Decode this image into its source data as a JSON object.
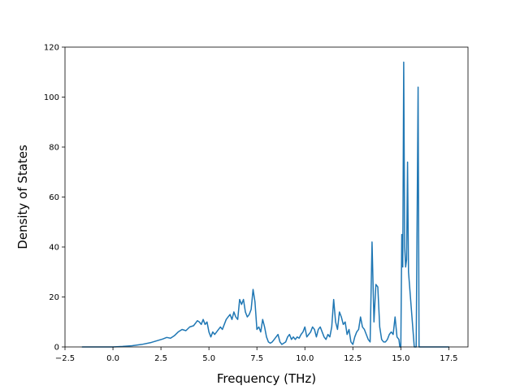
{
  "chart_data": {
    "type": "line",
    "title": "",
    "xlabel": "Frequency (THz)",
    "ylabel": "Density of States",
    "xlim": [
      -2.5,
      18.5
    ],
    "ylim": [
      0,
      120
    ],
    "xticks": [
      -2.5,
      0.0,
      2.5,
      5.0,
      7.5,
      10.0,
      12.5,
      15.0,
      17.5
    ],
    "xtick_labels": [
      "−2.5",
      "0.0",
      "2.5",
      "5.0",
      "7.5",
      "10.0",
      "12.5",
      "15.0",
      "17.5"
    ],
    "yticks": [
      0,
      20,
      40,
      60,
      80,
      100,
      120
    ],
    "ytick_labels": [
      "0",
      "20",
      "40",
      "60",
      "80",
      "100",
      "120"
    ],
    "grid": false,
    "line_color": "#1f77b4",
    "series": [
      {
        "name": "",
        "x": [
          -1.6,
          -1.0,
          -0.5,
          0.0,
          0.5,
          1.0,
          1.5,
          2.0,
          2.3,
          2.6,
          2.8,
          3.0,
          3.2,
          3.4,
          3.6,
          3.8,
          4.0,
          4.2,
          4.4,
          4.5,
          4.6,
          4.7,
          4.8,
          4.9,
          5.0,
          5.1,
          5.2,
          5.3,
          5.4,
          5.5,
          5.6,
          5.7,
          5.8,
          5.9,
          6.0,
          6.1,
          6.2,
          6.3,
          6.4,
          6.5,
          6.6,
          6.7,
          6.8,
          6.9,
          7.0,
          7.1,
          7.2,
          7.3,
          7.4,
          7.5,
          7.6,
          7.7,
          7.8,
          7.9,
          8.0,
          8.1,
          8.2,
          8.3,
          8.4,
          8.5,
          8.6,
          8.7,
          8.8,
          8.9,
          9.0,
          9.1,
          9.2,
          9.3,
          9.4,
          9.5,
          9.6,
          9.7,
          9.8,
          9.9,
          10.0,
          10.1,
          10.2,
          10.3,
          10.4,
          10.5,
          10.6,
          10.7,
          10.8,
          10.9,
          11.0,
          11.1,
          11.2,
          11.3,
          11.4,
          11.5,
          11.6,
          11.7,
          11.8,
          11.9,
          12.0,
          12.1,
          12.2,
          12.3,
          12.4,
          12.5,
          12.6,
          12.7,
          12.8,
          12.9,
          13.0,
          13.1,
          13.2,
          13.3,
          13.4,
          13.5,
          13.6,
          13.7,
          13.8,
          13.9,
          14.0,
          14.1,
          14.2,
          14.3,
          14.4,
          14.5,
          14.6,
          14.7,
          14.8,
          14.9,
          14.95,
          15.0,
          15.05,
          15.1,
          15.15,
          15.2,
          15.25,
          15.3,
          15.35,
          15.4,
          15.45,
          15.5,
          15.6,
          15.7,
          15.8,
          15.9,
          15.95,
          16.0,
          16.5,
          17.0,
          17.5
        ],
        "y": [
          0,
          0,
          0,
          0,
          0.2,
          0.5,
          1,
          1.8,
          2.5,
          3.2,
          3.8,
          3.5,
          4.5,
          6,
          7,
          6.5,
          8,
          8.5,
          10.5,
          10,
          9,
          11,
          9,
          10,
          6,
          4,
          6,
          5,
          6,
          7,
          8,
          7,
          9,
          11,
          12,
          13,
          11,
          14,
          12,
          11,
          19,
          17,
          19,
          14,
          12,
          13,
          15,
          23,
          18,
          7,
          8,
          6,
          11,
          8,
          4,
          2,
          1.5,
          2,
          3,
          4,
          5,
          2,
          1,
          1.5,
          2,
          4,
          5,
          3,
          4,
          3,
          4,
          3.5,
          5,
          6,
          8,
          4,
          5,
          6,
          8,
          7,
          4,
          7,
          8,
          6,
          4,
          3,
          5,
          4,
          8,
          19,
          10,
          7,
          14,
          12,
          9,
          10,
          5,
          7,
          2,
          1,
          4,
          6,
          7,
          12,
          8,
          7,
          5,
          3,
          2,
          42,
          10,
          25,
          24,
          8,
          3,
          2,
          2,
          3,
          5,
          6,
          5,
          12,
          4,
          3,
          0,
          0,
          45,
          32,
          114,
          40,
          32,
          35,
          74,
          30,
          25,
          20,
          10,
          0,
          0,
          104,
          0,
          0,
          0,
          0,
          0
        ]
      }
    ]
  }
}
